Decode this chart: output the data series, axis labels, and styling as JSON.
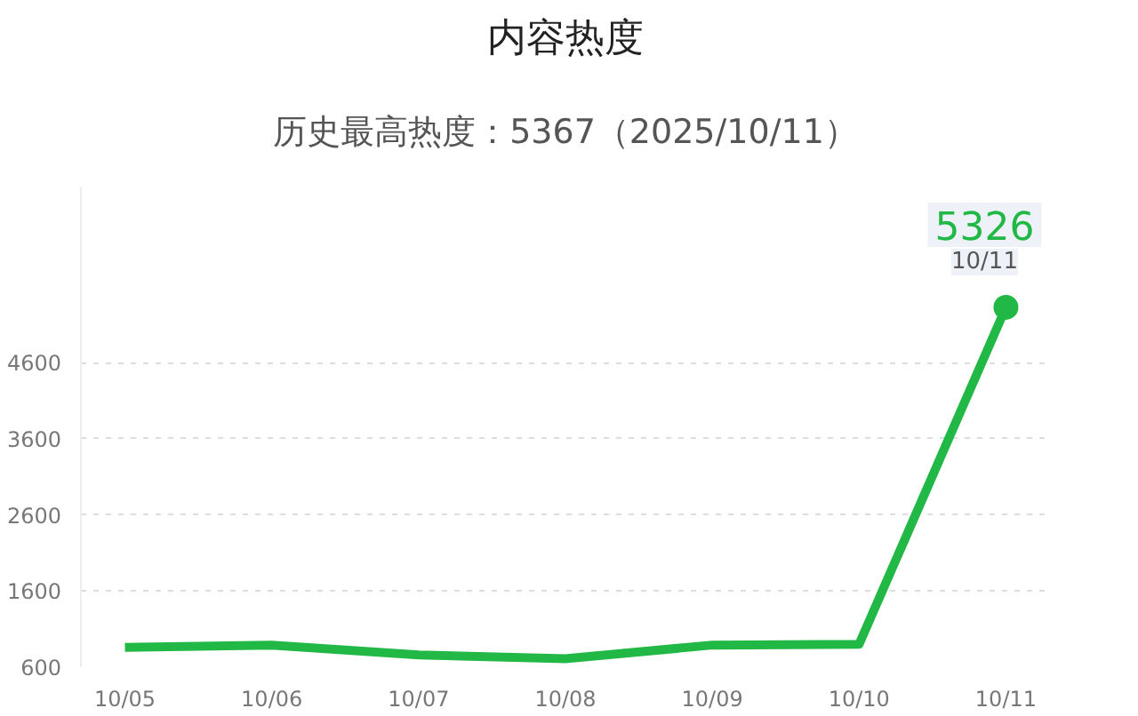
{
  "chart_data": {
    "type": "line",
    "title": "内容热度",
    "subtitle": "历史最高热度：5367（2025/10/11）",
    "categories": [
      "10/05",
      "10/06",
      "10/07",
      "10/08",
      "10/09",
      "10/10",
      "10/11"
    ],
    "series": [
      {
        "color": "#22b845",
        "values": [
          860,
          890,
          760,
          710,
          890,
          900,
          5326
        ]
      }
    ],
    "ylim": [
      600,
      6900
    ],
    "yticks": [
      600,
      1600,
      2600,
      3600,
      4600
    ],
    "grid": "y",
    "marker": "none",
    "line_style": "solid",
    "annotations": [
      {
        "text": "5326",
        "x": "10/11",
        "y": 5326
      },
      {
        "text": "10/11",
        "x": "10/11",
        "y": 5326
      }
    ]
  }
}
